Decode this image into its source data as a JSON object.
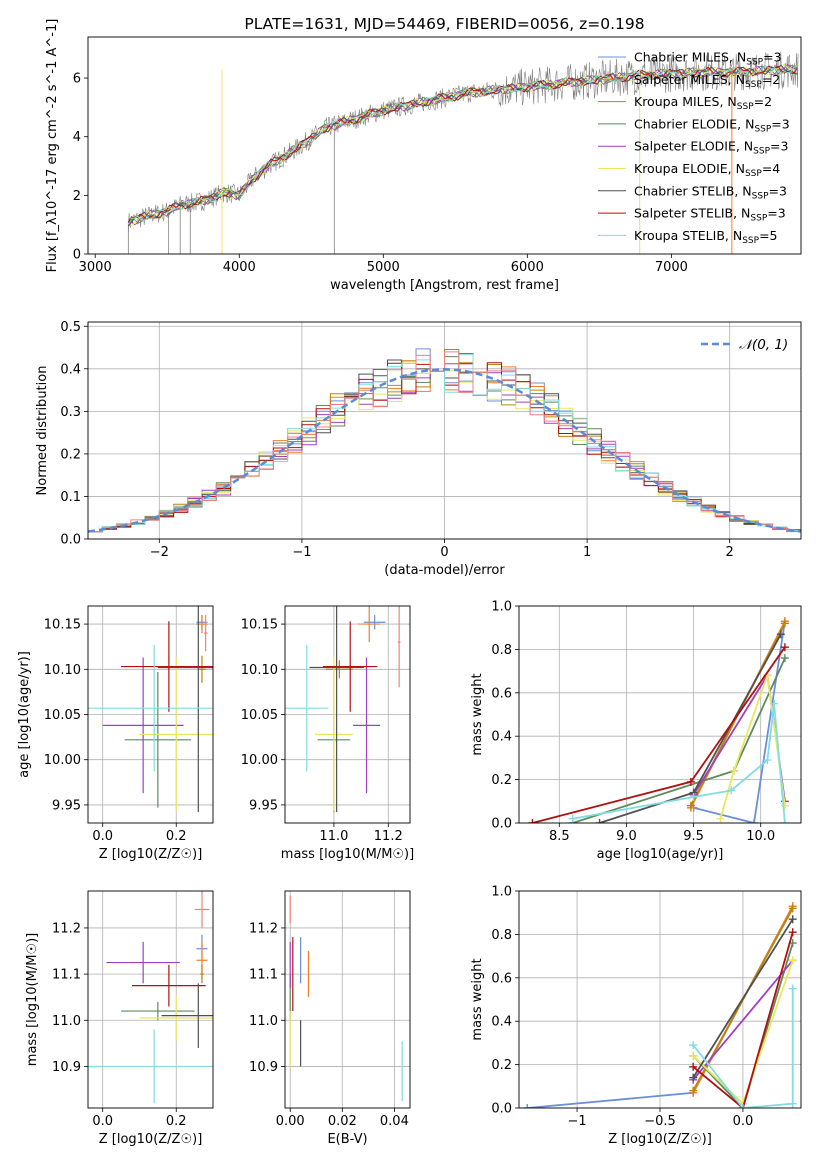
{
  "chart_data": [
    {
      "id": "spectrum",
      "type": "line",
      "title": "PLATE=1631, MJD=54469, FIBERID=0056, z=0.198",
      "xlabel": "wavelength [Angstrom, rest frame]",
      "ylabel": "Flux [f_λ10^-17 erg cm^-2 s^-1 A^-1]",
      "xlim": [
        2950,
        7900
      ],
      "ylim": [
        0,
        7.4
      ],
      "xticks": [
        3000,
        4000,
        5000,
        6000,
        7000
      ],
      "yticks": [
        0,
        2,
        4,
        6
      ],
      "grid": false,
      "legend_position": "right",
      "observed_color": "#808080",
      "continuum": {
        "x": [
          3230,
          3300,
          3400,
          3500,
          3600,
          3700,
          3800,
          3900,
          4000,
          4100,
          4200,
          4300,
          4400,
          4600,
          4800,
          5000,
          5200,
          5400,
          5600,
          5800,
          6000,
          6200,
          6400,
          6600,
          6800,
          7000,
          7200,
          7400,
          7600,
          7880
        ],
        "y": [
          1.1,
          1.2,
          1.35,
          1.45,
          1.7,
          1.75,
          1.9,
          2.1,
          2.0,
          2.6,
          3.0,
          3.3,
          3.6,
          4.3,
          4.6,
          4.9,
          5.1,
          5.3,
          5.5,
          5.6,
          5.7,
          5.8,
          5.9,
          6.0,
          6.1,
          6.15,
          6.2,
          6.2,
          6.25,
          6.3
        ]
      },
      "series": [
        {
          "name": "Chabrier MILES, N_SSP=3",
          "color": "#6b8fd6"
        },
        {
          "name": "Salpeter MILES, N_SSP=2",
          "color": "#f07f2a"
        },
        {
          "name": "Kroupa MILES, N_SSP=2",
          "color": "#b8860b"
        },
        {
          "name": "Chabrier ELODIE, N_SSP=3",
          "color": "#5d8a5d"
        },
        {
          "name": "Salpeter ELODIE, N_SSP=3",
          "color": "#a040c0"
        },
        {
          "name": "Kroupa ELODIE, N_SSP=4",
          "color": "#e8e860"
        },
        {
          "name": "Chabrier STELIB, N_SSP=3",
          "color": "#505050"
        },
        {
          "name": "Salpeter STELIB, N_SSP=3",
          "color": "#b01010"
        },
        {
          "name": "Kroupa STELIB, N_SSP=5",
          "color": "#80dde0"
        }
      ]
    },
    {
      "id": "residuals",
      "type": "line",
      "xlabel": "(data-model)/error",
      "ylabel": "Normed distribution",
      "xlim": [
        -2.5,
        2.5
      ],
      "ylim": [
        0,
        0.51
      ],
      "xticks": [
        -2,
        -1,
        0,
        1,
        2
      ],
      "yticks": [
        0.0,
        0.1,
        0.2,
        0.3,
        0.4,
        0.5
      ],
      "grid": true,
      "legend_position": "top-right",
      "gaussian_label": "𝒩(0, 1)",
      "gaussian_color": "#5b8bd6",
      "bin_width": 0.1,
      "colors": [
        "#6b8fd6",
        "#f07f2a",
        "#b8860b",
        "#5d8a5d",
        "#a040c0",
        "#e8e860",
        "#505050",
        "#b01010",
        "#80dde0",
        "#f08080"
      ]
    },
    {
      "id": "age-vs-Z",
      "type": "scatter",
      "xlabel": "Z [log10(Z/Z☉)]",
      "ylabel": "age  [log10(age/yr)]",
      "xlim": [
        -0.04,
        0.3
      ],
      "ylim": [
        9.93,
        10.17
      ],
      "xticks": [
        0.0,
        0.2
      ],
      "yticks": [
        9.95,
        10.0,
        10.05,
        10.1,
        10.15
      ],
      "grid": true,
      "points": [
        {
          "x": 0.27,
          "y": 10.152,
          "xerr": 0.015,
          "yerr": 0.008,
          "color": "#6b8fd6"
        },
        {
          "x": 0.27,
          "y": 10.15,
          "xerr": 0.015,
          "yerr": 0.01,
          "color": "#f07f2a"
        },
        {
          "x": 0.27,
          "y": 10.1,
          "xerr": 0.01,
          "yerr": 0.015,
          "color": "#b8860b"
        },
        {
          "x": 0.15,
          "y": 10.022,
          "xerr": 0.09,
          "yerr": 0.075,
          "color": "#5d8a5d"
        },
        {
          "x": 0.11,
          "y": 10.038,
          "xerr": 0.11,
          "yerr": 0.075,
          "color": "#a040c0"
        },
        {
          "x": 0.2,
          "y": 10.028,
          "xerr": 0.1,
          "yerr": 0.085,
          "color": "#e8e860"
        },
        {
          "x": 0.26,
          "y": 10.102,
          "xerr": 0.11,
          "yerr": 0.16,
          "color": "#505050"
        },
        {
          "x": 0.18,
          "y": 10.103,
          "xerr": 0.13,
          "yerr": 0.05,
          "color": "#b01010"
        },
        {
          "x": 0.14,
          "y": 10.057,
          "xerr": 0.18,
          "yerr": 0.07,
          "color": "#80dde0"
        },
        {
          "x": 0.28,
          "y": 10.14,
          "xerr": 0.005,
          "yerr": 0.02,
          "color": "#f08080"
        }
      ]
    },
    {
      "id": "age-vs-mass",
      "type": "scatter",
      "xlabel": "mass [log10(M/M☉)]",
      "ylabel": "",
      "xlim": [
        10.82,
        11.28
      ],
      "ylim": [
        9.93,
        10.17
      ],
      "xticks": [
        11.0,
        11.2
      ],
      "yticks": [
        9.95,
        10.0,
        10.05,
        10.1,
        10.15
      ],
      "grid": true,
      "points": [
        {
          "x": 11.15,
          "y": 10.152,
          "xerr": 0.04,
          "yerr": 0.008,
          "color": "#6b8fd6"
        },
        {
          "x": 11.13,
          "y": 10.15,
          "xerr": 0.04,
          "yerr": 0.02,
          "color": "#f07f2a"
        },
        {
          "x": 11.02,
          "y": 10.1,
          "xerr": 0.05,
          "yerr": 0.01,
          "color": "#b8860b"
        },
        {
          "x": 11.0,
          "y": 10.022,
          "xerr": 0.06,
          "yerr": 0.08,
          "color": "#5d8a5d"
        },
        {
          "x": 11.12,
          "y": 10.038,
          "xerr": 0.05,
          "yerr": 0.075,
          "color": "#a040c0"
        },
        {
          "x": 11.0,
          "y": 10.028,
          "xerr": 0.07,
          "yerr": 0.085,
          "color": "#e8e860"
        },
        {
          "x": 11.01,
          "y": 10.102,
          "xerr": 0.1,
          "yerr": 0.16,
          "color": "#505050"
        },
        {
          "x": 11.06,
          "y": 10.103,
          "xerr": 0.1,
          "yerr": 0.05,
          "color": "#b01010"
        },
        {
          "x": 10.9,
          "y": 10.057,
          "xerr": 0.08,
          "yerr": 0.07,
          "color": "#80dde0"
        },
        {
          "x": 11.24,
          "y": 10.13,
          "xerr": 0.005,
          "yerr": 0.05,
          "color": "#f08080"
        }
      ]
    },
    {
      "id": "weight-vs-age",
      "type": "line",
      "xlabel": "age  [log10(age/yr)]",
      "ylabel": "mass weight",
      "xlim": [
        8.2,
        10.3
      ],
      "ylim": [
        0,
        1.0
      ],
      "xticks": [
        8.5,
        9.0,
        9.5,
        10.0
      ],
      "yticks": [
        0.0,
        0.2,
        0.4,
        0.6,
        0.8,
        1.0
      ],
      "grid": true,
      "series": [
        {
          "color": "#6b8fd6",
          "x": [
            9.5,
            9.95,
            10.18
          ],
          "y": [
            0.07,
            0.0,
            0.93
          ]
        },
        {
          "color": "#f07f2a",
          "x": [
            9.48,
            10.18
          ],
          "y": [
            0.07,
            0.93
          ]
        },
        {
          "color": "#b8860b",
          "x": [
            9.48,
            10.18
          ],
          "y": [
            0.08,
            0.92
          ]
        },
        {
          "color": "#5d8a5d",
          "x": [
            8.6,
            9.8,
            10.18
          ],
          "y": [
            0.0,
            0.24,
            0.76
          ]
        },
        {
          "color": "#a040c0",
          "x": [
            9.5,
            10.05,
            10.18
          ],
          "y": [
            0.13,
            0.68,
            0.1
          ]
        },
        {
          "color": "#e8e860",
          "x": [
            9.7,
            9.8,
            10.05,
            10.18
          ],
          "y": [
            0.02,
            0.24,
            0.68,
            0.08
          ]
        },
        {
          "color": "#505050",
          "x": [
            8.8,
            9.5,
            10.15
          ],
          "y": [
            0.0,
            0.14,
            0.87
          ]
        },
        {
          "color": "#b01010",
          "x": [
            8.3,
            9.48,
            10.18
          ],
          "y": [
            0.0,
            0.19,
            0.81
          ]
        },
        {
          "color": "#80dde0",
          "x": [
            8.6,
            9.5,
            9.78,
            10.05,
            10.1,
            10.18
          ],
          "y": [
            0.02,
            0.12,
            0.15,
            0.29,
            0.55,
            0.0
          ]
        }
      ]
    },
    {
      "id": "mass-vs-Z",
      "type": "scatter",
      "xlabel": "Z [log10(Z/Z☉)]",
      "ylabel": "mass [log10(M/M☉)]",
      "xlim": [
        -0.04,
        0.3
      ],
      "ylim": [
        10.81,
        11.28
      ],
      "xticks": [
        0.0,
        0.2
      ],
      "yticks": [
        10.9,
        11.0,
        11.1,
        11.2
      ],
      "grid": true,
      "points": [
        {
          "x": 0.27,
          "y": 11.155,
          "xerr": 0.015,
          "yerr": 0.03,
          "color": "#6b8fd6"
        },
        {
          "x": 0.27,
          "y": 11.13,
          "xerr": 0.015,
          "yerr": 0.04,
          "color": "#f07f2a"
        },
        {
          "x": 0.27,
          "y": 11.1,
          "xerr": 0.005,
          "yerr": 0.02,
          "color": "#b8860b"
        },
        {
          "x": 0.15,
          "y": 11.02,
          "xerr": 0.1,
          "yerr": 0.02,
          "color": "#5d8a5d"
        },
        {
          "x": 0.11,
          "y": 11.125,
          "xerr": 0.1,
          "yerr": 0.045,
          "color": "#a040c0"
        },
        {
          "x": 0.2,
          "y": 11.005,
          "xerr": 0.1,
          "yerr": 0.05,
          "color": "#e8e860"
        },
        {
          "x": 0.26,
          "y": 11.01,
          "xerr": 0.1,
          "yerr": 0.07,
          "color": "#505050"
        },
        {
          "x": 0.18,
          "y": 11.075,
          "xerr": 0.1,
          "yerr": 0.045,
          "color": "#b01010"
        },
        {
          "x": 0.14,
          "y": 10.9,
          "xerr": 0.18,
          "yerr": 0.08,
          "color": "#80dde0"
        },
        {
          "x": 0.27,
          "y": 11.24,
          "xerr": 0.02,
          "yerr": 0.04,
          "color": "#f08080"
        }
      ]
    },
    {
      "id": "mass-vs-ebv",
      "type": "scatter",
      "xlabel": "E(B-V)",
      "ylabel": "",
      "xlim": [
        -0.002,
        0.046
      ],
      "ylim": [
        10.81,
        11.28
      ],
      "xticks": [
        0.0,
        0.02,
        0.04
      ],
      "yticks": [
        10.9,
        11.0,
        11.1,
        11.2
      ],
      "grid": true,
      "points": [
        {
          "x": 0.004,
          "y": 11.13,
          "xerr": 0,
          "yerr": 0.05,
          "color": "#6b8fd6"
        },
        {
          "x": 0.007,
          "y": 11.1,
          "xerr": 0,
          "yerr": 0.05,
          "color": "#f07f2a"
        },
        {
          "x": 0.0,
          "y": 11.05,
          "xerr": 0,
          "yerr": 0.05,
          "color": "#5d8a5d"
        },
        {
          "x": 0.0,
          "y": 11.12,
          "xerr": 0,
          "yerr": 0.05,
          "color": "#a040c0"
        },
        {
          "x": 0.0,
          "y": 10.96,
          "xerr": 0,
          "yerr": 0.06,
          "color": "#e8e860"
        },
        {
          "x": 0.004,
          "y": 10.95,
          "xerr": 0,
          "yerr": 0.05,
          "color": "#505050"
        },
        {
          "x": 0.001,
          "y": 11.1,
          "xerr": 0,
          "yerr": 0.08,
          "color": "#b01010"
        },
        {
          "x": 0.043,
          "y": 10.89,
          "xerr": 0,
          "yerr": 0.065,
          "color": "#80dde0"
        },
        {
          "x": 0.0,
          "y": 11.24,
          "xerr": 0,
          "yerr": 0.03,
          "color": "#f08080"
        }
      ]
    },
    {
      "id": "weight-vs-Z",
      "type": "line",
      "xlabel": "Z [log10(Z/Z☉)]",
      "ylabel": "mass weight",
      "xlim": [
        -1.35,
        0.35
      ],
      "ylim": [
        0,
        1.0
      ],
      "xticks": [
        -1.0,
        -0.5,
        0.0
      ],
      "yticks": [
        0.0,
        0.2,
        0.4,
        0.6,
        0.8,
        1.0
      ],
      "grid": true,
      "series": [
        {
          "color": "#6b8fd6",
          "x": [
            -1.3,
            -0.3,
            0.3
          ],
          "y": [
            0.0,
            0.07,
            0.93
          ]
        },
        {
          "color": "#f07f2a",
          "x": [
            -0.3,
            0.3
          ],
          "y": [
            0.07,
            0.93
          ]
        },
        {
          "color": "#b8860b",
          "x": [
            -0.3,
            0.3
          ],
          "y": [
            0.08,
            0.92
          ]
        },
        {
          "color": "#5d8a5d",
          "x": [
            -0.3,
            0.0,
            0.3
          ],
          "y": [
            0.24,
            0.0,
            0.76
          ]
        },
        {
          "color": "#a040c0",
          "x": [
            -0.3,
            0.3
          ],
          "y": [
            0.13,
            0.68
          ]
        },
        {
          "color": "#e8e860",
          "x": [
            -0.3,
            0.0,
            0.3
          ],
          "y": [
            0.24,
            0.02,
            0.68
          ]
        },
        {
          "color": "#505050",
          "x": [
            -0.3,
            0.3
          ],
          "y": [
            0.14,
            0.87
          ]
        },
        {
          "color": "#b01010",
          "x": [
            -0.3,
            0.0,
            0.3
          ],
          "y": [
            0.19,
            0.0,
            0.81
          ]
        },
        {
          "color": "#80dde0",
          "x": [
            -0.3,
            0.0,
            0.3,
            0.3
          ],
          "y": [
            0.29,
            0.0,
            0.02,
            0.55
          ]
        }
      ]
    }
  ]
}
